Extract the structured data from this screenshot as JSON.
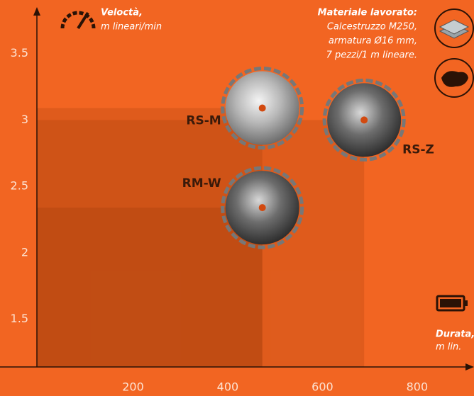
{
  "chart_data": {
    "type": "scatter",
    "y_label": [
      "Veloctà,",
      "m lineari/min"
    ],
    "x_label": [
      "Durata,",
      "m lin."
    ],
    "annotation": [
      "Materiale lavorato:",
      "Calcestruzzo M250,",
      "armatura Ø16 mm,",
      "7 pezzi/1 m lineare."
    ],
    "series": [
      {
        "name": "RS-M",
        "x": 473,
        "y": 3.09
      },
      {
        "name": "RS-Z",
        "x": 688,
        "y": 3.0
      },
      {
        "name": "RM-W",
        "x": 473,
        "y": 2.34
      }
    ],
    "xlim": [
      0,
      920
    ],
    "xticks": [
      200,
      400,
      600,
      800
    ],
    "ylim": [
      1.14,
      3.84
    ],
    "yticks": [
      1.5,
      2,
      2.5,
      3,
      3.5
    ],
    "background": "#f26522",
    "area_color": "#7a2a00"
  }
}
